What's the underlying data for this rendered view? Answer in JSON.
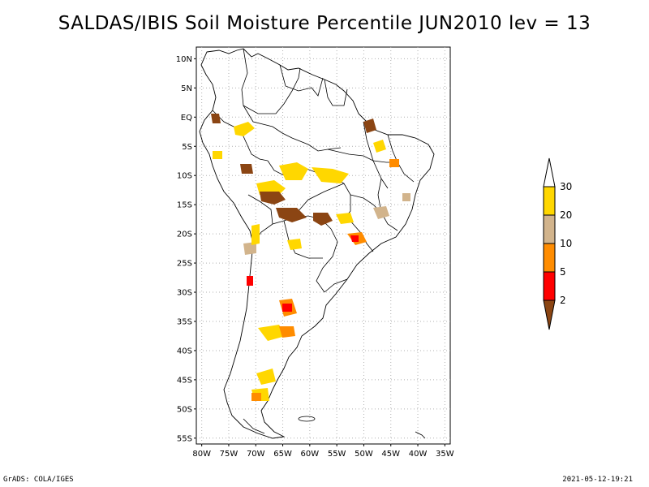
{
  "title": "SALDAS/IBIS Soil Moisture Percentile JUN2010 lev = 13",
  "footer": {
    "left": "GrADS: COLA/IGES",
    "right": "2021-05-12-19:21"
  },
  "map": {
    "lat_ticks": [
      "10N",
      "5N",
      "EQ",
      "5S",
      "10S",
      "15S",
      "20S",
      "25S",
      "30S",
      "35S",
      "40S",
      "45S",
      "50S",
      "55S"
    ],
    "lon_ticks": [
      "80W",
      "75W",
      "70W",
      "65W",
      "60W",
      "55W",
      "50W",
      "45W",
      "40W",
      "35W"
    ],
    "lat_values": [
      10,
      5,
      0,
      -5,
      -10,
      -15,
      -20,
      -25,
      -30,
      -35,
      -40,
      -45,
      -50,
      -55
    ],
    "lon_values": [
      -80,
      -75,
      -70,
      -65,
      -60,
      -55,
      -50,
      -45,
      -40,
      -35
    ],
    "lon_range": [
      -81,
      -34
    ],
    "lat_range": [
      -56,
      12
    ],
    "grid": true
  },
  "legend": {
    "labels": [
      "2",
      "5",
      "10",
      "20",
      "30"
    ],
    "bins": [
      {
        "color": "#8b4513"
      },
      {
        "color": "#ff0000"
      },
      {
        "color": "#ff8c00"
      },
      {
        "color": "#d2b48c"
      },
      {
        "color": "#ffd700"
      },
      {
        "color": "#ffffff"
      }
    ]
  },
  "colors": {
    "brown": "#8b4513",
    "red": "#ff0000",
    "orange": "#ff8c00",
    "tan": "#d2b48c",
    "gold": "#ffd700"
  }
}
